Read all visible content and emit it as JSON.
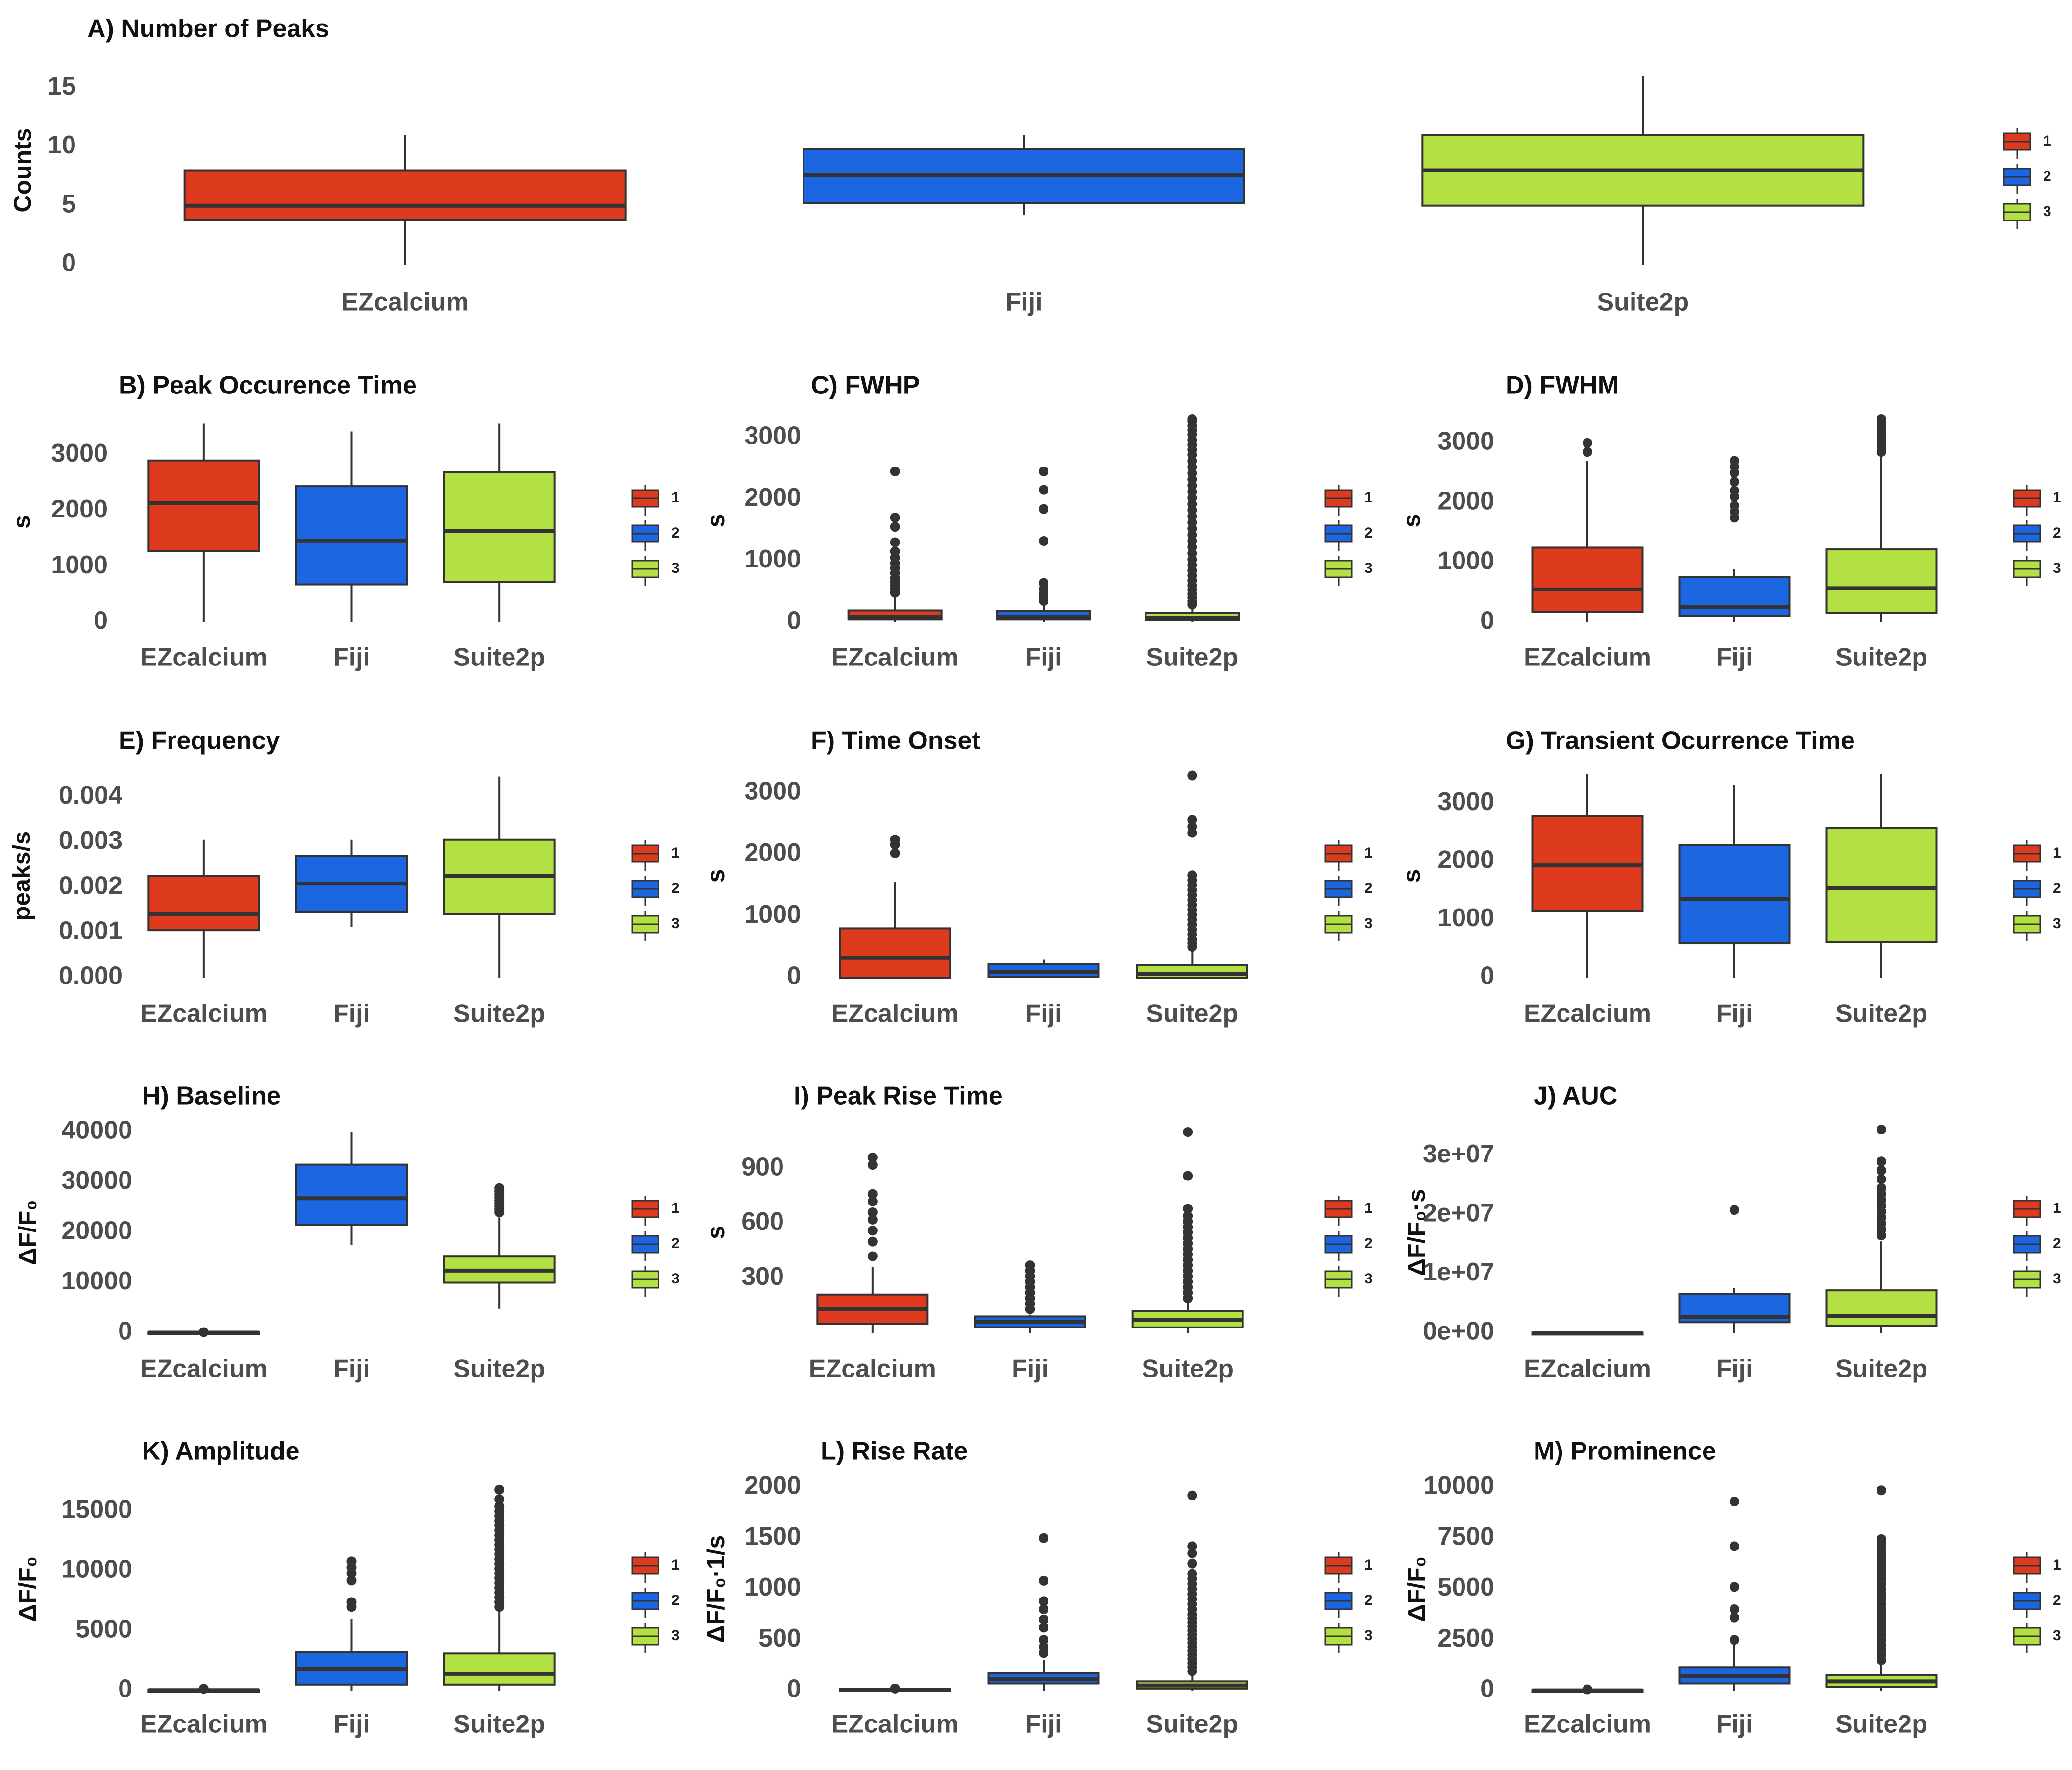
{
  "legend": [
    {
      "label": "1",
      "color": "#DD3A1E"
    },
    {
      "label": "2",
      "color": "#1C66E2"
    },
    {
      "label": "3",
      "color": "#B3E043"
    }
  ],
  "categories": [
    "EZcalcium",
    "Fiji",
    "Suite2p"
  ],
  "chart_data": [
    {
      "type": "box",
      "title": "A) Number of Peaks",
      "ylabel": "Counts",
      "ylim": [
        0,
        16
      ],
      "yticks": [
        0,
        5,
        10,
        15
      ],
      "ytick_labels": [
        "0",
        "5",
        "10",
        "15"
      ],
      "categories": [
        "EZcalcium",
        "Fiji",
        "Suite2p"
      ],
      "series": [
        {
          "q1": 3.8,
          "median": 5,
          "q3": 8,
          "whisker_low": 0,
          "whisker_high": 11,
          "outliers": []
        },
        {
          "q1": 5.2,
          "median": 7.6,
          "q3": 9.8,
          "whisker_low": 4.2,
          "whisker_high": 11,
          "outliers": []
        },
        {
          "q1": 5,
          "median": 8,
          "q3": 11,
          "whisker_low": 0,
          "whisker_high": 16,
          "outliers": []
        }
      ]
    },
    {
      "type": "box",
      "title": "B) Peak Occurence Time",
      "ylabel": "s",
      "ylim": [
        0,
        3600
      ],
      "yticks": [
        0,
        1000,
        2000,
        3000
      ],
      "ytick_labels": [
        "0",
        "1000",
        "2000",
        "3000"
      ],
      "categories": [
        "EZcalcium",
        "Fiji",
        "Suite2p"
      ],
      "series": [
        {
          "q1": 1280,
          "median": 2140,
          "q3": 2900,
          "whisker_low": 0,
          "whisker_high": 3560,
          "outliers": []
        },
        {
          "q1": 680,
          "median": 1460,
          "q3": 2440,
          "whisker_low": 0,
          "whisker_high": 3420,
          "outliers": []
        },
        {
          "q1": 720,
          "median": 1640,
          "q3": 2690,
          "whisker_low": 0,
          "whisker_high": 3560,
          "outliers": []
        }
      ]
    },
    {
      "type": "box",
      "title": "C) FWHP",
      "ylabel": "s",
      "ylim": [
        0,
        3300
      ],
      "yticks": [
        0,
        1000,
        2000,
        3000
      ],
      "ytick_labels": [
        "0",
        "1000",
        "2000",
        "3000"
      ],
      "categories": [
        "EZcalcium",
        "Fiji",
        "Suite2p"
      ],
      "series": [
        {
          "q1": 45,
          "median": 90,
          "q3": 195,
          "whisker_low": 0,
          "whisker_high": 420,
          "outliers": [
            480,
            540,
            600,
            660,
            720,
            800,
            880,
            960,
            1050,
            1150,
            1300,
            1550,
            1700,
            2450
          ]
        },
        {
          "q1": 45,
          "median": 90,
          "q3": 185,
          "whisker_low": 0,
          "whisker_high": 330,
          "outliers": [
            350,
            400,
            460,
            540,
            640,
            1320,
            1840,
            2150,
            2450
          ]
        },
        {
          "q1": 35,
          "median": 65,
          "q3": 155,
          "whisker_low": 0,
          "whisker_high": 270,
          "outliers": [
            290,
            340,
            400,
            460,
            530,
            600,
            680,
            760,
            840,
            930,
            1020,
            1120,
            1220,
            1320,
            1420,
            1520,
            1620,
            1720,
            1820,
            1920,
            2020,
            2120,
            2220,
            2320,
            2420,
            2520,
            2620,
            2720,
            2800,
            2880,
            2960,
            3050,
            3120,
            3190,
            3260,
            3300
          ]
        }
      ]
    },
    {
      "type": "box",
      "title": "D) FWHM",
      "ylabel": "s",
      "ylim": [
        0,
        3400
      ],
      "yticks": [
        0,
        1000,
        2000,
        3000
      ],
      "ytick_labels": [
        "0",
        "1000",
        "2000",
        "3000"
      ],
      "categories": [
        "EZcalcium",
        "Fiji",
        "Suite2p"
      ],
      "series": [
        {
          "q1": 180,
          "median": 550,
          "q3": 1250,
          "whisker_low": 0,
          "whisker_high": 2700,
          "outliers": [
            2850,
            3000
          ]
        },
        {
          "q1": 100,
          "median": 260,
          "q3": 760,
          "whisker_low": 0,
          "whisker_high": 890,
          "outliers": [
            1750,
            1850,
            1950,
            2100,
            2200,
            2350,
            2500,
            2600,
            2700
          ]
        },
        {
          "q1": 160,
          "median": 570,
          "q3": 1220,
          "whisker_low": 0,
          "whisker_high": 2800,
          "outliers": [
            2850,
            2900,
            2950,
            3000,
            3050,
            3100,
            3150,
            3200,
            3250,
            3300,
            3350,
            3400
          ]
        }
      ]
    },
    {
      "type": "box",
      "title": "E) Frequency",
      "ylabel": "peaks/s",
      "ylim": [
        0,
        0.0045
      ],
      "yticks": [
        0,
        0.001,
        0.002,
        0.003,
        0.004
      ],
      "ytick_labels": [
        "0.000",
        "0.001",
        "0.002",
        "0.003",
        "0.004"
      ],
      "categories": [
        "EZcalcium",
        "Fiji",
        "Suite2p"
      ],
      "series": [
        {
          "q1": 0.00105,
          "median": 0.0014,
          "q3": 0.00225,
          "whisker_low": 0,
          "whisker_high": 0.00305,
          "outliers": []
        },
        {
          "q1": 0.00145,
          "median": 0.00208,
          "q3": 0.0027,
          "whisker_low": 0.00112,
          "whisker_high": 0.00305,
          "outliers": []
        },
        {
          "q1": 0.0014,
          "median": 0.00225,
          "q3": 0.00305,
          "whisker_low": 0,
          "whisker_high": 0.00445,
          "outliers": []
        }
      ]
    },
    {
      "type": "box",
      "title": "F) Time Onset",
      "ylabel": "s",
      "ylim": [
        0,
        3300
      ],
      "yticks": [
        0,
        1000,
        2000,
        3000
      ],
      "ytick_labels": [
        "0",
        "1000",
        "2000",
        "3000"
      ],
      "categories": [
        "EZcalcium",
        "Fiji",
        "Suite2p"
      ],
      "series": [
        {
          "q1": 0,
          "median": 320,
          "q3": 800,
          "whisker_low": 0,
          "whisker_high": 1550,
          "outliers": [
            2020,
            2160,
            2240
          ]
        },
        {
          "q1": 10,
          "median": 90,
          "q3": 215,
          "whisker_low": 0,
          "whisker_high": 290,
          "outliers": []
        },
        {
          "q1": 0,
          "median": 60,
          "q3": 200,
          "whisker_low": 0,
          "whisker_high": 460,
          "outliers": [
            500,
            560,
            620,
            700,
            780,
            860,
            940,
            1020,
            1100,
            1180,
            1260,
            1340,
            1420,
            1500,
            1580,
            1660,
            2350,
            2450,
            2560,
            3280
          ]
        }
      ]
    },
    {
      "type": "box",
      "title": "G) Transient Ocurrence Time",
      "ylabel": "s",
      "ylim": [
        0,
        3500
      ],
      "yticks": [
        0,
        1000,
        2000,
        3000
      ],
      "ytick_labels": [
        "0",
        "1000",
        "2000",
        "3000"
      ],
      "categories": [
        "EZcalcium",
        "Fiji",
        "Suite2p"
      ],
      "series": [
        {
          "q1": 1140,
          "median": 1930,
          "q3": 2780,
          "whisker_low": 0,
          "whisker_high": 3500,
          "outliers": []
        },
        {
          "q1": 590,
          "median": 1350,
          "q3": 2280,
          "whisker_low": 0,
          "whisker_high": 3320,
          "outliers": []
        },
        {
          "q1": 610,
          "median": 1540,
          "q3": 2580,
          "whisker_low": 0,
          "whisker_high": 3500,
          "outliers": []
        }
      ]
    },
    {
      "type": "box",
      "title": "H) Baseline",
      "ylabel": "ΔF/F₀",
      "ylim": [
        0,
        40000
      ],
      "yticks": [
        0,
        10000,
        20000,
        30000,
        40000
      ],
      "ytick_labels": [
        "0",
        "10000",
        "20000",
        "30000",
        "40000"
      ],
      "categories": [
        "EZcalcium",
        "Fiji",
        "Suite2p"
      ],
      "series": [
        {
          "q1": 0,
          "median": 50,
          "q3": 100,
          "whisker_low": 0,
          "whisker_high": 150,
          "outliers": [
            150
          ]
        },
        {
          "q1": 21500,
          "median": 26800,
          "q3": 33500,
          "whisker_low": 17500,
          "whisker_high": 40000,
          "outliers": []
        },
        {
          "q1": 10000,
          "median": 12400,
          "q3": 15200,
          "whisker_low": 4800,
          "whisker_high": 23000,
          "outliers": [
            24000,
            24600,
            25200,
            25800,
            26400,
            27000,
            27600,
            28200,
            28800
          ]
        }
      ]
    },
    {
      "type": "box",
      "title": "I) Peak Rise Time",
      "ylabel": "s",
      "ylim": [
        0,
        1100
      ],
      "yticks": [
        300,
        600,
        900
      ],
      "ytick_labels": [
        "300",
        "600",
        "900"
      ],
      "categories": [
        "EZcalcium",
        "Fiji",
        "Suite2p"
      ],
      "series": [
        {
          "q1": 50,
          "median": 130,
          "q3": 210,
          "whisker_low": 0,
          "whisker_high": 360,
          "outliers": [
            420,
            500,
            560,
            620,
            660,
            720,
            760,
            920,
            960
          ]
        },
        {
          "q1": 30,
          "median": 60,
          "q3": 90,
          "whisker_low": 0,
          "whisker_high": 100,
          "outliers": [
            130,
            160,
            190,
            220,
            250,
            280,
            310,
            340,
            370
          ]
        },
        {
          "q1": 30,
          "median": 70,
          "q3": 120,
          "whisker_low": 0,
          "whisker_high": 170,
          "outliers": [
            190,
            220,
            250,
            280,
            310,
            340,
            370,
            400,
            430,
            460,
            490,
            520,
            550,
            580,
            610,
            640,
            680,
            860,
            1100
          ]
        }
      ]
    },
    {
      "type": "box",
      "title": "J) AUC",
      "ylabel": "ΔF/F₀·s",
      "ylim": [
        0,
        34000000
      ],
      "yticks": [
        0,
        10000000,
        20000000,
        30000000
      ],
      "ytick_labels": [
        "0e+00",
        "1e+07",
        "2e+07",
        "3e+07"
      ],
      "categories": [
        "EZcalcium",
        "Fiji",
        "Suite2p"
      ],
      "series": [
        {
          "q1": 0,
          "median": 0,
          "q3": 50000,
          "whisker_low": 0,
          "whisker_high": 80000,
          "outliers": []
        },
        {
          "q1": 1800000,
          "median": 2700000,
          "q3": 6600000,
          "whisker_low": 0,
          "whisker_high": 7600000,
          "outliers": [
            20800000
          ]
        },
        {
          "q1": 1200000,
          "median": 2900000,
          "q3": 7200000,
          "whisker_low": 0,
          "whisker_high": 15500000,
          "outliers": [
            16500000,
            17500000,
            18500000,
            19500000,
            20500000,
            21500000,
            22500000,
            23500000,
            24500000,
            26000000,
            27500000,
            29000000,
            34400000
          ]
        }
      ]
    },
    {
      "type": "box",
      "title": "K) Amplitude",
      "ylabel": "ΔF/F₀",
      "ylim": [
        0,
        17000
      ],
      "yticks": [
        0,
        5000,
        10000,
        15000
      ],
      "ytick_labels": [
        "0",
        "5000",
        "10000",
        "15000"
      ],
      "categories": [
        "EZcalcium",
        "Fiji",
        "Suite2p"
      ],
      "series": [
        {
          "q1": 0,
          "median": 30,
          "q3": 80,
          "whisker_low": 0,
          "whisker_high": 120,
          "outliers": [
            150
          ]
        },
        {
          "q1": 500,
          "median": 1800,
          "q3": 3200,
          "whisker_low": 0,
          "whisker_high": 6000,
          "outliers": [
            7000,
            7400,
            9200,
            9800,
            10300,
            10800
          ]
        },
        {
          "q1": 500,
          "median": 1400,
          "q3": 3100,
          "whisker_low": 0,
          "whisker_high": 6600,
          "outliers": [
            7000,
            7400,
            7800,
            8200,
            8600,
            9000,
            9400,
            9800,
            10200,
            10600,
            11000,
            11400,
            11800,
            12200,
            12600,
            13000,
            13400,
            13800,
            14200,
            14600,
            15000,
            15400,
            16000,
            16800
          ]
        }
      ]
    },
    {
      "type": "box",
      "title": "L) Rise Rate",
      "ylabel": "ΔF/F₀·1/s",
      "ylim": [
        0,
        2000
      ],
      "yticks": [
        0,
        500,
        1000,
        1500,
        2000
      ],
      "ytick_labels": [
        "0",
        "500",
        "1000",
        "1500",
        "2000"
      ],
      "categories": [
        "EZcalcium",
        "Fiji",
        "Suite2p"
      ],
      "series": [
        {
          "q1": 0,
          "median": 5,
          "q3": 15,
          "whisker_low": 0,
          "whisker_high": 20,
          "outliers": [
            20
          ]
        },
        {
          "q1": 70,
          "median": 110,
          "q3": 170,
          "whisker_low": 0,
          "whisker_high": 300,
          "outliers": [
            370,
            430,
            500,
            620,
            700,
            800,
            880,
            1080,
            1500
          ]
        },
        {
          "q1": 20,
          "median": 50,
          "q3": 90,
          "whisker_low": 0,
          "whisker_high": 160,
          "outliers": [
            190,
            230,
            270,
            310,
            350,
            390,
            430,
            470,
            510,
            550,
            590,
            630,
            670,
            710,
            750,
            800,
            850,
            900,
            950,
            1000,
            1050,
            1100,
            1150,
            1250,
            1350,
            1420,
            1920
          ]
        }
      ]
    },
    {
      "type": "box",
      "title": "M) Prominence",
      "ylabel": "ΔF/F₀",
      "ylim": [
        0,
        10000
      ],
      "yticks": [
        0,
        2500,
        5000,
        7500,
        10000
      ],
      "ytick_labels": [
        "0",
        "2500",
        "5000",
        "7500",
        "10000"
      ],
      "categories": [
        "EZcalcium",
        "Fiji",
        "Suite2p"
      ],
      "series": [
        {
          "q1": 0,
          "median": 10,
          "q3": 40,
          "whisker_low": 0,
          "whisker_high": 60,
          "outliers": [
            60
          ]
        },
        {
          "q1": 350,
          "median": 700,
          "q3": 1150,
          "whisker_low": 0,
          "whisker_high": 2300,
          "outliers": [
            2500,
            3600,
            4000,
            5100,
            7100,
            9300
          ]
        },
        {
          "q1": 180,
          "median": 450,
          "q3": 750,
          "whisker_low": 0,
          "whisker_high": 1300,
          "outliers": [
            1500,
            1750,
            2000,
            2250,
            2500,
            2750,
            3000,
            3250,
            3500,
            3750,
            4000,
            4250,
            4500,
            4750,
            5000,
            5250,
            5500,
            5750,
            6000,
            6250,
            6500,
            6750,
            7000,
            7250,
            7450,
            9850
          ]
        }
      ]
    }
  ]
}
